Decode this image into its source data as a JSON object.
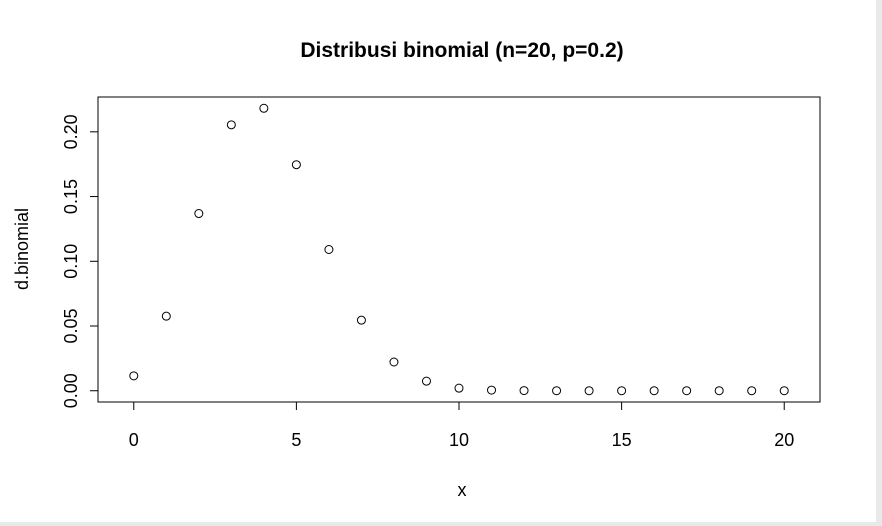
{
  "chart_data": {
    "type": "scatter",
    "title": "Distribusi binomial (n=20, p=0.2)",
    "xlabel": "x",
    "ylabel": "d.binomial",
    "x": [
      0,
      1,
      2,
      3,
      4,
      5,
      6,
      7,
      8,
      9,
      10,
      11,
      12,
      13,
      14,
      15,
      16,
      17,
      18,
      19,
      20
    ],
    "y": [
      0.0115,
      0.0576,
      0.1369,
      0.2054,
      0.2182,
      0.1746,
      0.1091,
      0.0545,
      0.0222,
      0.0074,
      0.002,
      0.0005,
      0.0001,
      0.0,
      0.0,
      0.0,
      0.0,
      0.0,
      0.0,
      0.0,
      0.0
    ],
    "xlim": [
      -1.1,
      21.1
    ],
    "ylim": [
      -0.0087,
      0.2269
    ],
    "x_ticks": [
      0,
      5,
      10,
      15,
      20
    ],
    "x_tick_labels": [
      "0",
      "5",
      "10",
      "15",
      "20"
    ],
    "y_ticks": [
      0,
      0.05,
      0.1,
      0.15,
      0.2
    ],
    "y_tick_labels": [
      "0.00",
      "0.05",
      "0.10",
      "0.15",
      "0.20"
    ],
    "marker": "open-circle",
    "grid": false,
    "colors": {
      "points": "#000000",
      "axes": "#000000",
      "background": "#ffffff"
    }
  }
}
